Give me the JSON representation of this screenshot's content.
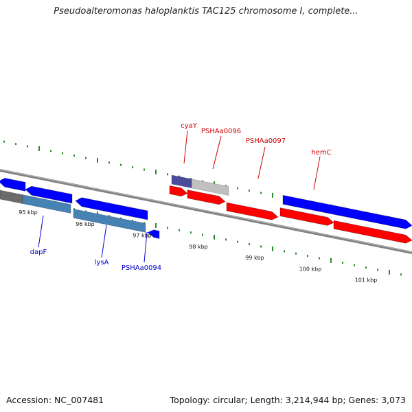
{
  "title": "Pseudoalteromonas haloplanktis TAC125 chromosome I, complete...",
  "footer": {
    "accession": "Accession: NC_007481",
    "topology": "Topology: circular; Length: 3,214,944 bp; Genes: 3,073"
  },
  "colors": {
    "forward_gene": "#ff0000",
    "reverse_gene": "#0000ff",
    "reverse_label": "#0000cc",
    "forward_label": "#cc0000",
    "tick": "#2a8a2a",
    "backbone": "#808080",
    "orf_steel": "#4682b4",
    "orf_gray": "#c0c0c0",
    "orf_purple": "#4b4b9c"
  },
  "kbp_ticks": [
    "95 kbp",
    "96 kbp",
    "97 kbp",
    "98 kbp",
    "99 kbp",
    "100 kbp",
    "101 kbp"
  ],
  "genes": [
    {
      "name": "dapF",
      "strand": "reverse"
    },
    {
      "name": "lysA",
      "strand": "reverse"
    },
    {
      "name": "PSHAa0094",
      "strand": "reverse"
    },
    {
      "name": "cyaY",
      "strand": "forward"
    },
    {
      "name": "PSHAa0096",
      "strand": "forward"
    },
    {
      "name": "PSHAa0097",
      "strand": "forward"
    },
    {
      "name": "hemC",
      "strand": "forward"
    }
  ]
}
